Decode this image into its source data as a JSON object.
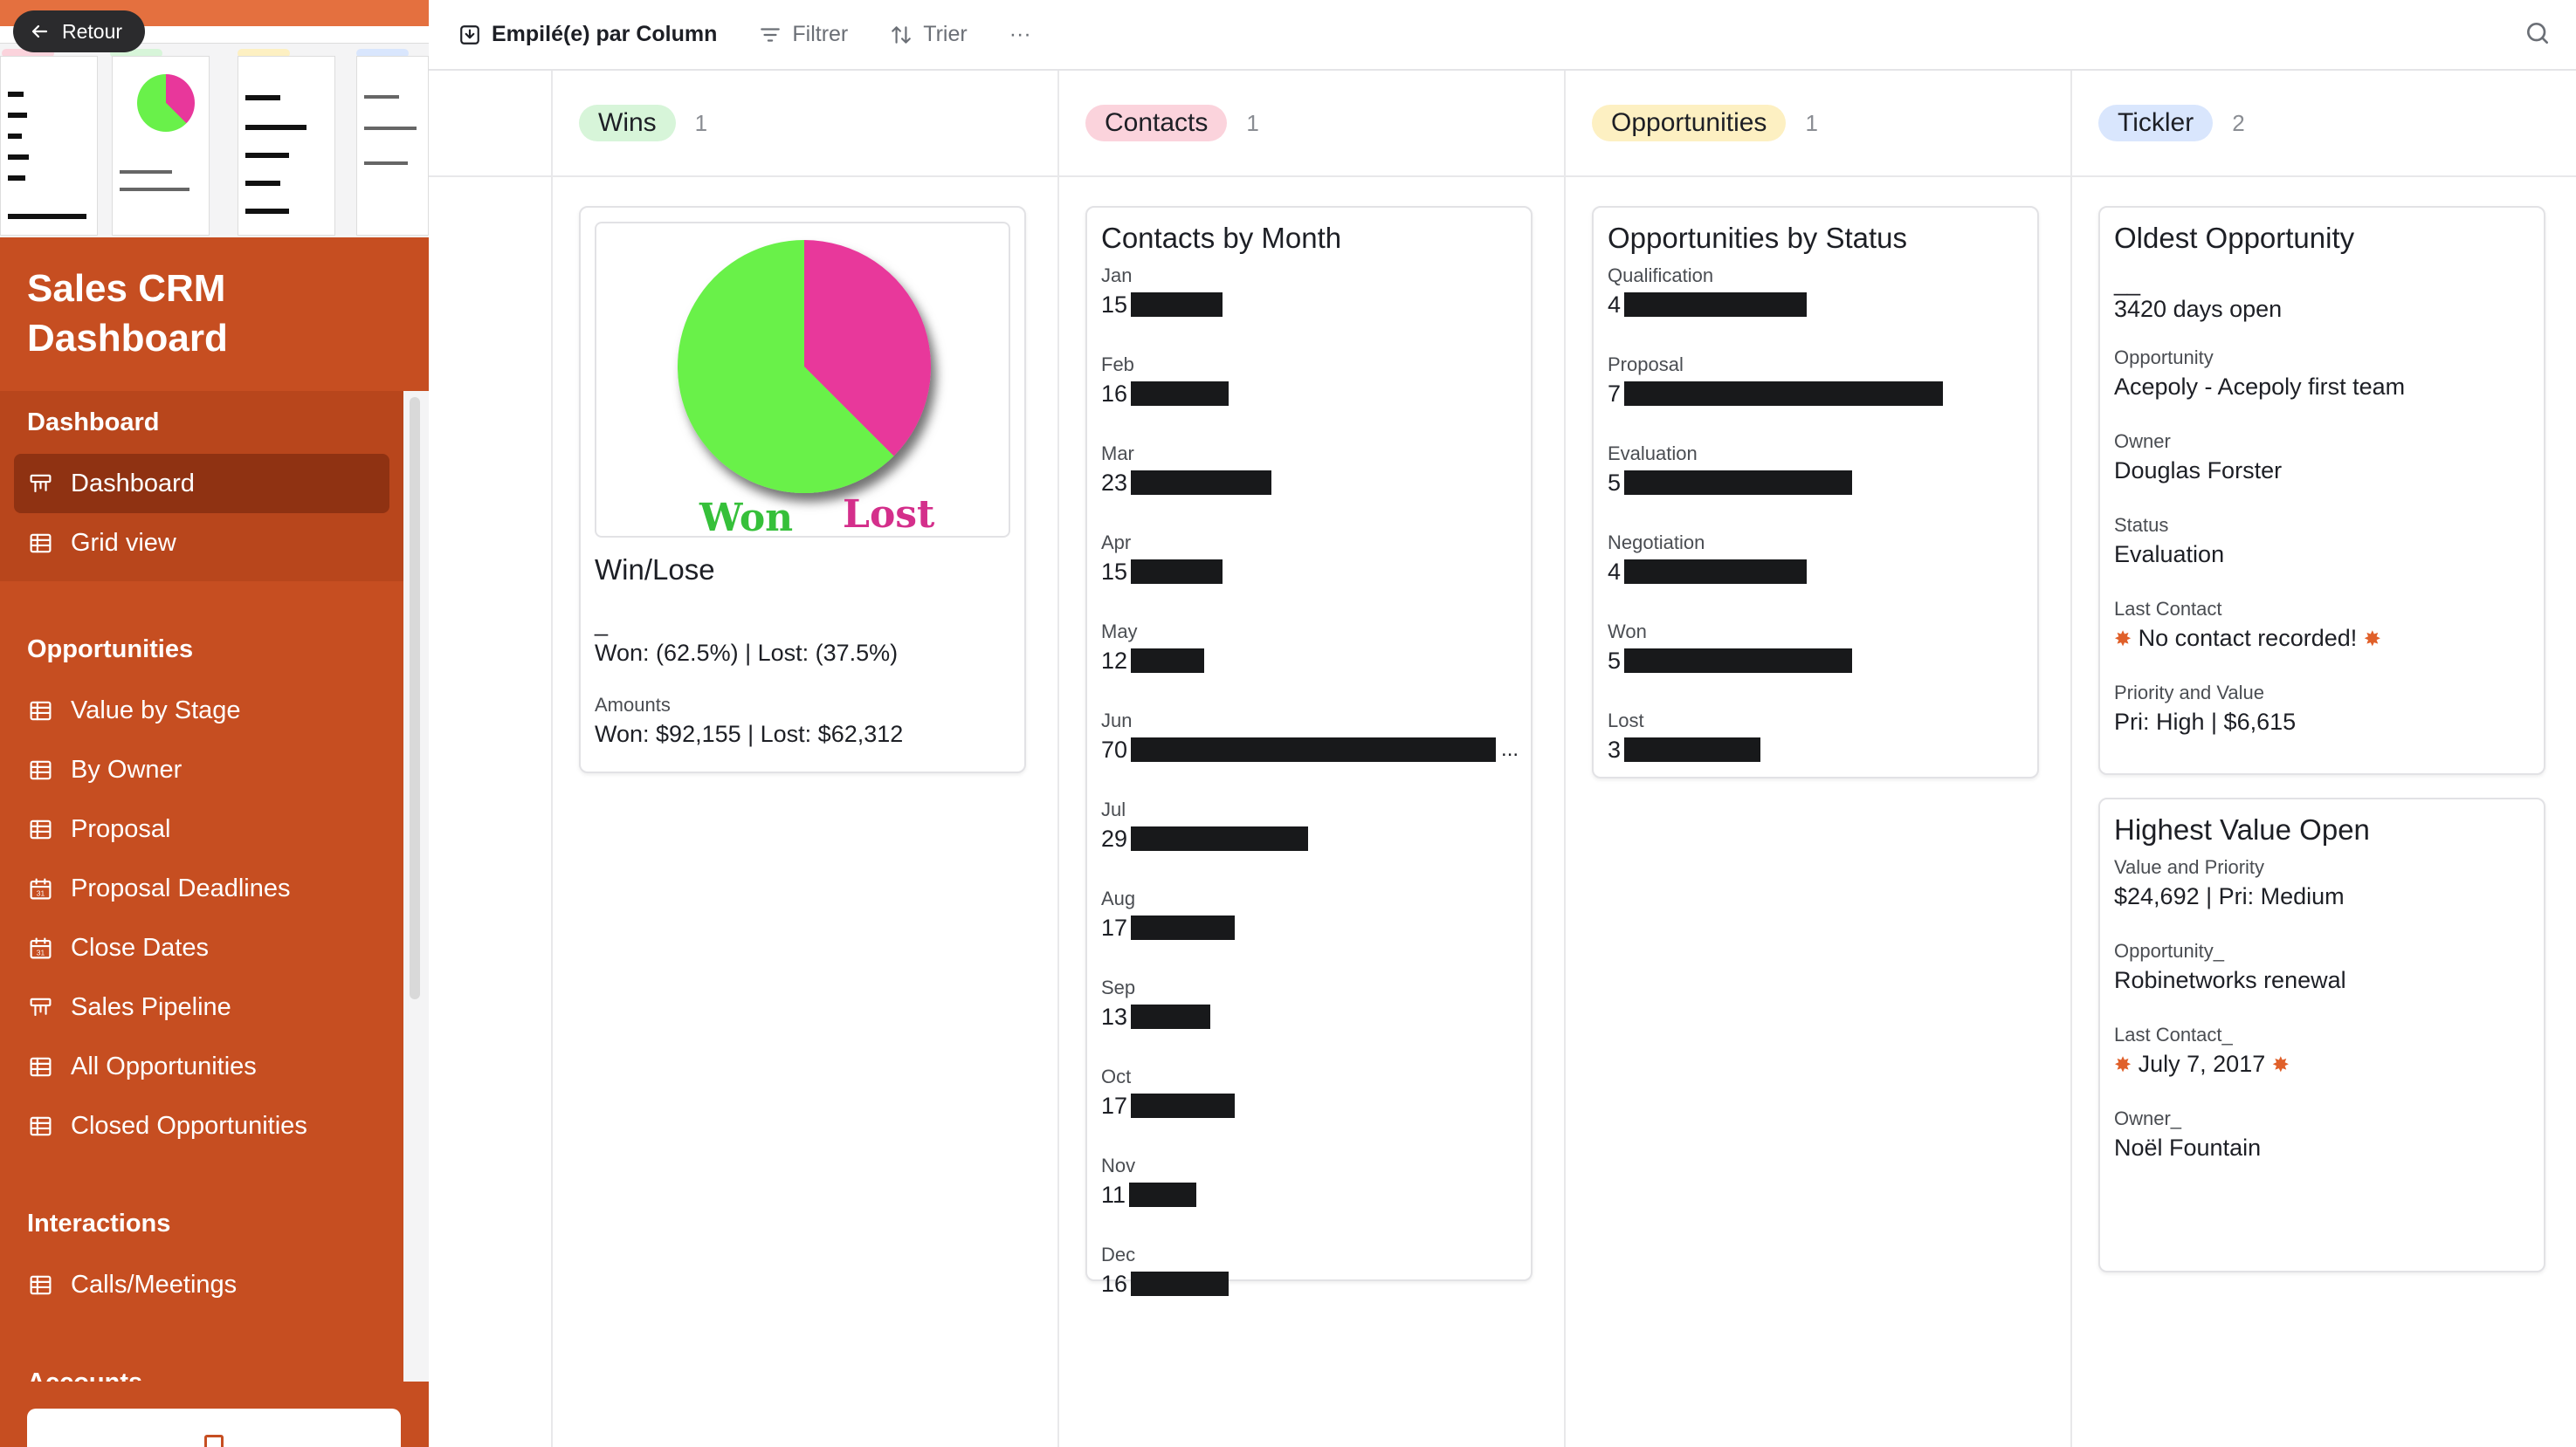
{
  "sidebar": {
    "back_label": "Retour",
    "app_title": "Sales CRM Dashboard",
    "groups": [
      {
        "heading": "Dashboard",
        "items": [
          {
            "label": "Dashboard",
            "icon": "kanban-icon",
            "active": true
          },
          {
            "label": "Grid view",
            "icon": "grid-icon"
          }
        ]
      },
      {
        "heading": "Opportunities",
        "items": [
          {
            "label": "Value by Stage",
            "icon": "grid-icon"
          },
          {
            "label": "By Owner",
            "icon": "grid-icon"
          },
          {
            "label": "Proposal",
            "icon": "grid-icon"
          },
          {
            "label": "Proposal Deadlines",
            "icon": "calendar-icon"
          },
          {
            "label": "Close Dates",
            "icon": "calendar-icon"
          },
          {
            "label": "Sales Pipeline",
            "icon": "kanban-icon"
          },
          {
            "label": "All Opportunities",
            "icon": "grid-icon"
          },
          {
            "label": "Closed Opportunities",
            "icon": "grid-icon"
          }
        ]
      },
      {
        "heading": "Interactions",
        "items": [
          {
            "label": "Calls/Meetings",
            "icon": "grid-icon"
          }
        ]
      },
      {
        "heading": "Accounts",
        "items": []
      }
    ],
    "accent_color": "#c64e21"
  },
  "toolbar": {
    "stack_label": "Empilé(e) par Column",
    "filter_label": "Filtrer",
    "sort_label": "Trier",
    "more_label": "···"
  },
  "columns": [
    {
      "name": "Wins",
      "count": "1",
      "color": "#d7f5d9"
    },
    {
      "name": "Contacts",
      "count": "1",
      "color": "#fbd3dc"
    },
    {
      "name": "Opportunities",
      "count": "1",
      "color": "#fdf0c2"
    },
    {
      "name": "Tickler",
      "count": "2",
      "color": "#d9e6fd"
    }
  ],
  "wins_card": {
    "image_won": "Won",
    "image_lost": "Lost",
    "title": "Win/Lose",
    "dash": "_",
    "ratio": "Won: (62.5%) | Lost: (37.5%)",
    "amounts_label": "Amounts",
    "amounts_value": "Won: $92,155 | Lost: $62,312",
    "pie": {
      "won_pct": 62.5,
      "lost_pct": 37.5,
      "won_color": "#69f14a",
      "lost_color": "#e8379b"
    }
  },
  "contacts_card": {
    "title": "Contacts by Month",
    "rows": [
      {
        "month": "Jan",
        "value": 15
      },
      {
        "month": "Feb",
        "value": 16
      },
      {
        "month": "Mar",
        "value": 23
      },
      {
        "month": "Apr",
        "value": 15
      },
      {
        "month": "May",
        "value": 12
      },
      {
        "month": "Jun",
        "value": 70
      },
      {
        "month": "Jul",
        "value": 29
      },
      {
        "month": "Aug",
        "value": 17
      },
      {
        "month": "Sep",
        "value": 13
      },
      {
        "month": "Oct",
        "value": 17
      },
      {
        "month": "Nov",
        "value": 11
      },
      {
        "month": "Dec",
        "value": 16
      }
    ]
  },
  "opps_card": {
    "title": "Opportunities by Status",
    "rows": [
      {
        "status": "Qualification",
        "value": 4
      },
      {
        "status": "Proposal",
        "value": 7
      },
      {
        "status": "Evaluation",
        "value": 5
      },
      {
        "status": "Negotiation",
        "value": 4
      },
      {
        "status": "Won",
        "value": 5
      },
      {
        "status": "Lost",
        "value": 3
      }
    ]
  },
  "tickler_oldest": {
    "title": "Oldest Opportunity",
    "dash": "__",
    "days": "3420 days open",
    "opportunity_label": "Opportunity",
    "opportunity_value": "Acepoly - Acepoly first team",
    "owner_label": "Owner",
    "owner_value": "Douglas Forster",
    "status_label": "Status",
    "status_value": "Evaluation",
    "last_contact_label": "Last Contact",
    "last_contact_value": "No contact recorded!",
    "priority_label": "Priority and Value",
    "priority_value": "Pri: High | $6,615"
  },
  "tickler_highest": {
    "title": "Highest Value Open",
    "value_label": "Value and Priority",
    "value_value": "$24,692 | Pri: Medium",
    "opportunity_label": "Opportunity_",
    "opportunity_value": "Robinetworks renewal",
    "last_contact_label": "Last Contact_",
    "last_contact_value": "July 7, 2017",
    "owner_label": "Owner_",
    "owner_value": "Noël Fountain"
  },
  "thumbnail": {
    "window_title": "Sales CRM Dashboard"
  }
}
